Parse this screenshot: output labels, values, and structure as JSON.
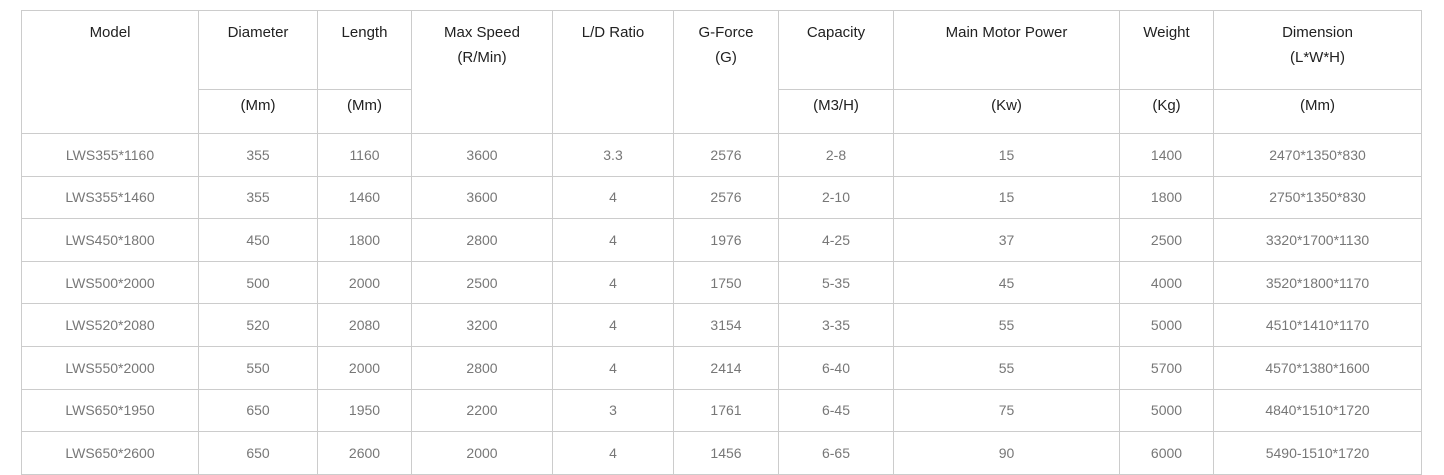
{
  "table": {
    "columns": [
      {
        "label": "Model"
      },
      {
        "label": "Diameter",
        "unit": "(Mm)"
      },
      {
        "label": "Length",
        "unit": "(Mm)"
      },
      {
        "label": "Max Speed",
        "label2": "(R/Min)"
      },
      {
        "label": "L/D Ratio"
      },
      {
        "label": "G-Force",
        "label2": "(G)"
      },
      {
        "label": "Capacity",
        "unit": "(M3/H)"
      },
      {
        "label": "Main Motor Power",
        "unit": "(Kw)"
      },
      {
        "label": "Weight",
        "unit": "(Kg)"
      },
      {
        "label": "Dimension",
        "label2": "(L*W*H)",
        "unit": "(Mm)"
      }
    ],
    "rows": [
      [
        "LWS355*1160",
        "355",
        "1160",
        "3600",
        "3.3",
        "2576",
        "2-8",
        "15",
        "1400",
        "2470*1350*830"
      ],
      [
        "LWS355*1460",
        "355",
        "1460",
        "3600",
        "4",
        "2576",
        "2-10",
        "15",
        "1800",
        "2750*1350*830"
      ],
      [
        "LWS450*1800",
        "450",
        "1800",
        "2800",
        "4",
        "1976",
        "4-25",
        "37",
        "2500",
        "3320*1700*1130"
      ],
      [
        "LWS500*2000",
        "500",
        "2000",
        "2500",
        "4",
        "1750",
        "5-35",
        "45",
        "4000",
        "3520*1800*1170"
      ],
      [
        "LWS520*2080",
        "520",
        "2080",
        "3200",
        "4",
        "3154",
        "3-35",
        "55",
        "5000",
        "4510*1410*1170"
      ],
      [
        "LWS550*2000",
        "550",
        "2000",
        "2800",
        "4",
        "2414",
        "6-40",
        "55",
        "5700",
        "4570*1380*1600"
      ],
      [
        "LWS650*1950",
        "650",
        "1950",
        "2200",
        "3",
        "1761",
        "6-45",
        "75",
        "5000",
        "4840*1510*1720"
      ],
      [
        "LWS650*2600",
        "650",
        "2600",
        "2000",
        "4",
        "1456",
        "6-65",
        "90",
        "6000",
        "5490-1510*1720"
      ]
    ],
    "colors": {
      "border": "#cccccc",
      "header_text": "#212121",
      "cell_text": "#777777",
      "background": "#ffffff"
    }
  }
}
